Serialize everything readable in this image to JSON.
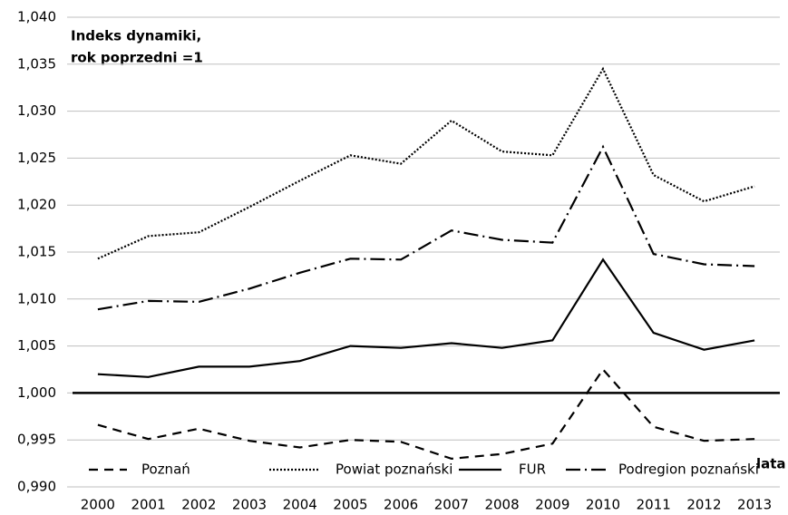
{
  "chart_data": {
    "type": "line",
    "y_label": [
      "Indeks dynamiki,",
      "rok poprzedni =1"
    ],
    "x_label": "lata",
    "categories": [
      "2000",
      "2001",
      "2002",
      "2003",
      "2004",
      "2005",
      "2006",
      "2007",
      "2008",
      "2009",
      "2010",
      "2011",
      "2012",
      "2013"
    ],
    "series": [
      {
        "name": "Poznań",
        "color": "#000000",
        "dash": "10 7",
        "values": [
          0.9966,
          0.9951,
          0.9962,
          0.9949,
          0.9942,
          0.995,
          0.9948,
          0.993,
          0.9935,
          0.9946,
          1.0025,
          0.9964,
          0.9949,
          0.9951
        ]
      },
      {
        "name": "Powiat poznański",
        "color": "#000000",
        "dash": "2 2",
        "values": [
          1.0143,
          1.0167,
          1.0171,
          1.0198,
          1.0226,
          1.0253,
          1.0244,
          1.029,
          1.0257,
          1.0253,
          1.0345,
          1.0232,
          1.0204,
          1.022
        ]
      },
      {
        "name": "FUR",
        "color": "#000000",
        "dash": "",
        "values": [
          1.002,
          1.0017,
          1.0028,
          1.0028,
          1.0034,
          1.005,
          1.0048,
          1.0053,
          1.0048,
          1.0056,
          1.0142,
          1.0064,
          1.0046,
          1.0056
        ]
      },
      {
        "name": "Podregion poznański",
        "color": "#000000",
        "dash": "16 5 2 5",
        "values": [
          1.0089,
          1.0098,
          1.0097,
          1.0111,
          1.0128,
          1.0143,
          1.0142,
          1.0173,
          1.0163,
          1.016,
          1.0262,
          1.0148,
          1.0137,
          1.0135
        ]
      }
    ],
    "ylim": [
      0.99,
      1.04
    ],
    "yticks": [
      {
        "value": 0.99,
        "label": "0,990"
      },
      {
        "value": 0.995,
        "label": "0,995"
      },
      {
        "value": 1,
        "label": "1,000"
      },
      {
        "value": 1.005,
        "label": "1,005"
      },
      {
        "value": 1.01,
        "label": "1,010"
      },
      {
        "value": 1.015,
        "label": "1,015"
      },
      {
        "value": 1.02,
        "label": "1,020"
      },
      {
        "value": 1.025,
        "label": "1,025"
      },
      {
        "value": 1.03,
        "label": "1,030"
      },
      {
        "value": 1.035,
        "label": "1,035"
      },
      {
        "value": 1.04,
        "label": "1,040"
      }
    ],
    "x_axis_at": 1,
    "grid": true
  }
}
